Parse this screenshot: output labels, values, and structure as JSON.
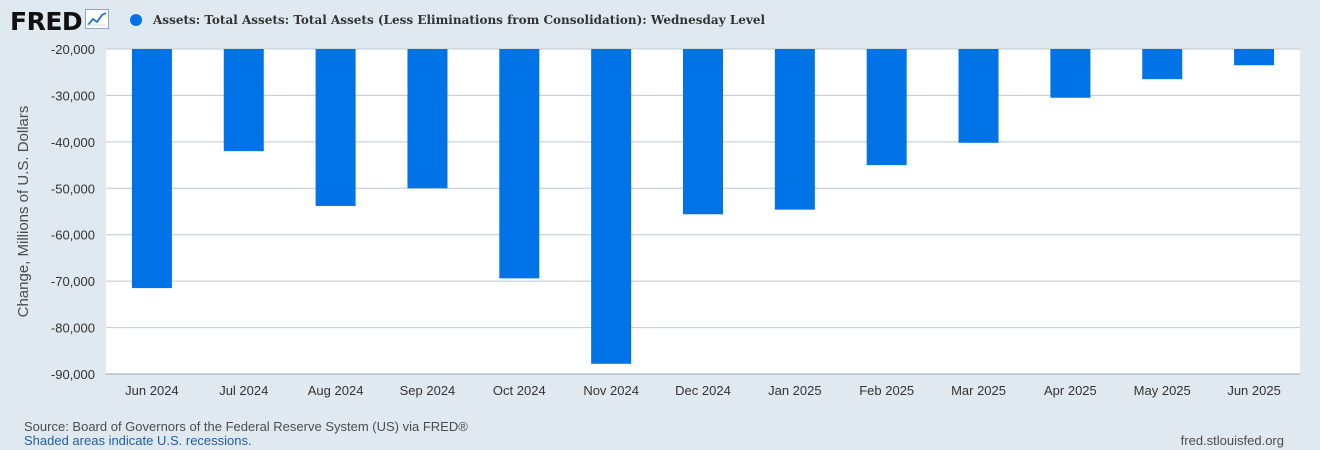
{
  "header": {
    "logo_text": "FRED",
    "logo_icon": "trend-line-icon"
  },
  "legend": {
    "label": "Assets: Total Assets: Total Assets (Less Eliminations from Consolidation): Wednesday Level",
    "color": "#0073e6"
  },
  "footer": {
    "source": "Source: Board of Governors of the Federal Reserve System (US) via FRED®",
    "shaded": "Shaded areas indicate U.S. recessions.",
    "url": "fred.stlouisfed.org"
  },
  "colors": {
    "bar": "#0073e6",
    "grid": "#c0c8d0",
    "plot_bg": "#ffffff",
    "page_bg": "#e1e9f0"
  },
  "chart_data": {
    "type": "bar",
    "ylabel": "Change, Millions of U.S. Dollars",
    "xlabel": "",
    "categories": [
      "Jun 2024",
      "Jul 2024",
      "Aug 2024",
      "Sep 2024",
      "Oct 2024",
      "Nov 2024",
      "Dec 2024",
      "Jan 2025",
      "Feb 2025",
      "Mar 2025",
      "Apr 2025",
      "May 2025",
      "Jun 2025"
    ],
    "series": [
      {
        "name": "Assets: Total Assets: Total Assets (Less Eliminations from Consolidation): Wednesday Level",
        "values": [
          -71500,
          -42000,
          -53800,
          -50000,
          -69400,
          -87800,
          -55600,
          -54600,
          -45000,
          -40200,
          -30500,
          -26500,
          -23500
        ]
      }
    ],
    "ylim": [
      -90000,
      -20000
    ],
    "yticks": [
      -20000,
      -30000,
      -40000,
      -50000,
      -60000,
      -70000,
      -80000,
      -90000
    ],
    "ytick_labels": [
      "-20,000",
      "-30,000",
      "-40,000",
      "-50,000",
      "-60,000",
      "-70,000",
      "-80,000",
      "-90,000"
    ],
    "grid": true,
    "legend_position": "top"
  }
}
